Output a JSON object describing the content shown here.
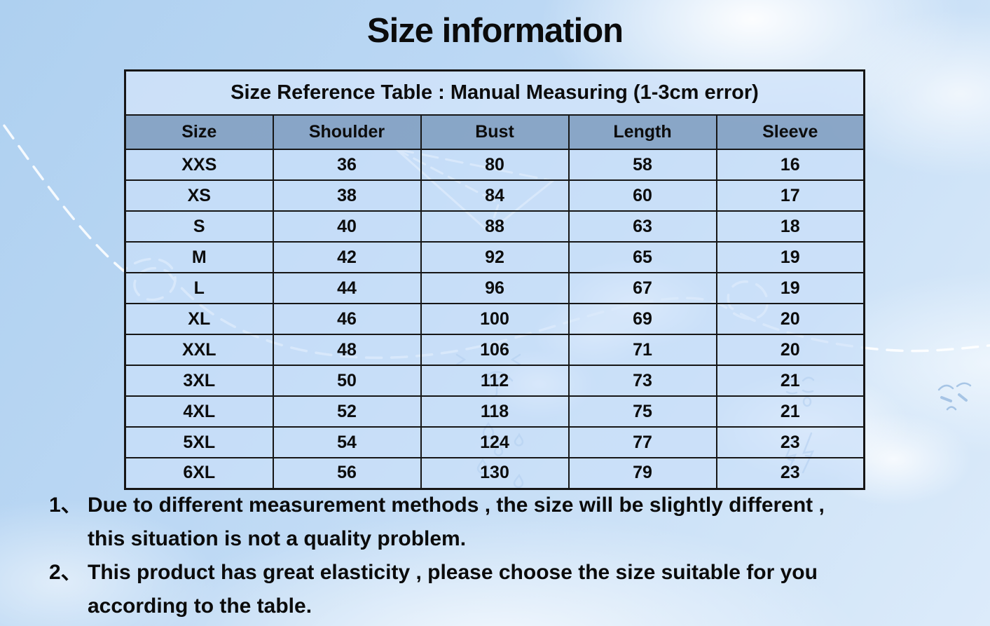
{
  "page": {
    "title": "Size information"
  },
  "table": {
    "caption": "Size Reference Table : Manual Measuring (1-3cm error)",
    "columns": [
      "Size",
      "Shoulder",
      "Bust",
      "Length",
      "Sleeve"
    ],
    "rows": [
      [
        "XXS",
        "36",
        "80",
        "58",
        "16"
      ],
      [
        "XS",
        "38",
        "84",
        "60",
        "17"
      ],
      [
        "S",
        "40",
        "88",
        "63",
        "18"
      ],
      [
        "M",
        "42",
        "92",
        "65",
        "19"
      ],
      [
        "L",
        "44",
        "96",
        "67",
        "19"
      ],
      [
        "XL",
        "46",
        "100",
        "69",
        "20"
      ],
      [
        "XXL",
        "48",
        "106",
        "71",
        "20"
      ],
      [
        "3XL",
        "50",
        "112",
        "73",
        "21"
      ],
      [
        "4XL",
        "52",
        "118",
        "75",
        "21"
      ],
      [
        "5XL",
        "54",
        "124",
        "77",
        "23"
      ],
      [
        "6XL",
        "56",
        "130",
        "79",
        "23"
      ]
    ]
  },
  "notes": [
    {
      "num": "1、",
      "lines": [
        "Due to different measurement methods , the size will be slightly different ,",
        "this situation is not a quality problem."
      ]
    },
    {
      "num": "2、",
      "lines": [
        "This product has great elasticity , please choose the size suitable for you",
        "according to the table."
      ]
    }
  ],
  "colors": {
    "sky_top": "#aed0f0",
    "sky_light": "#e9f3fc",
    "caption_bg": "#cfe2f7",
    "header_bg": "#93aecb",
    "cell_bg": "#c7def7",
    "border": "#161616",
    "text": "#0c0c0c",
    "doodle_white": "#ffffff",
    "doodle_blue": "#7fa9d8"
  },
  "decorations": [
    "flight-path-doodle",
    "paper-plane-icon",
    "cloud",
    "umbrella-doodle",
    "chevron-doodle",
    "raindrop-doodle",
    "lightning-doodle",
    "face-doodle"
  ]
}
